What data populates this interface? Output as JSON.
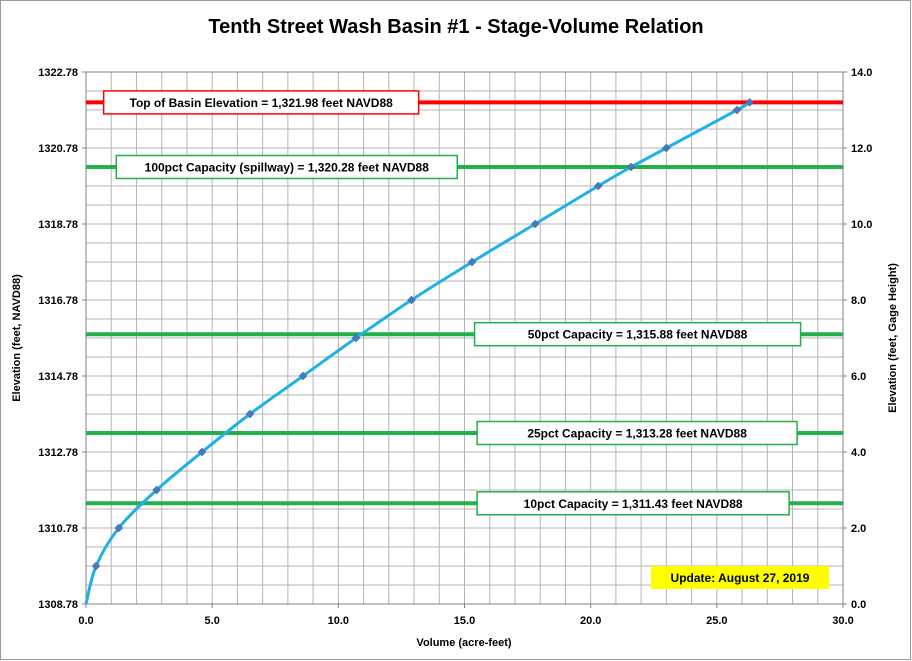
{
  "chart_data": {
    "type": "line",
    "title": "Tenth Street Wash Basin #1 - Stage-Volume Relation",
    "xlabel": "Volume (acre-feet)",
    "ylabel": "Elevation  (feet, NAVD88)",
    "y2label": "Elevation  (feet, Gage  Height)",
    "xlim": [
      0,
      30
    ],
    "ylim": [
      1308.78,
      1322.78
    ],
    "y2lim": [
      0,
      14
    ],
    "xticks": [
      0,
      5,
      10,
      15,
      20,
      25,
      30
    ],
    "xtick_labels": [
      "0.0",
      "5.0",
      "10.0",
      "15.0",
      "20.0",
      "25.0",
      "30.0"
    ],
    "yticks": [
      1308.78,
      1310.78,
      1312.78,
      1314.78,
      1316.78,
      1318.78,
      1320.78,
      1322.78
    ],
    "ytick_labels": [
      "1308.78",
      "1310.78",
      "1312.78",
      "1314.78",
      "1316.78",
      "1318.78",
      "1320.78",
      "1322.78"
    ],
    "y2ticks": [
      0,
      2,
      4,
      6,
      8,
      10,
      12,
      14
    ],
    "y2tick_labels": [
      "0.0",
      "2.0",
      "4.0",
      "6.0",
      "8.0",
      "10.0",
      "12.0",
      "14.0"
    ],
    "grid": true,
    "series": [
      {
        "color": "#1fb0e6",
        "marker_color": "#4a78b8",
        "points": [
          {
            "x": 0.0,
            "y": 1308.78
          },
          {
            "x": 0.4,
            "y": 1309.78
          },
          {
            "x": 1.3,
            "y": 1310.78
          },
          {
            "x": 2.8,
            "y": 1311.78
          },
          {
            "x": 4.6,
            "y": 1312.78
          },
          {
            "x": 6.5,
            "y": 1313.78
          },
          {
            "x": 8.6,
            "y": 1314.78
          },
          {
            "x": 10.7,
            "y": 1315.78
          },
          {
            "x": 12.9,
            "y": 1316.78
          },
          {
            "x": 15.3,
            "y": 1317.78
          },
          {
            "x": 17.8,
            "y": 1318.78
          },
          {
            "x": 20.3,
            "y": 1319.78
          },
          {
            "x": 21.6,
            "y": 1320.28
          },
          {
            "x": 23.0,
            "y": 1320.78
          },
          {
            "x": 25.8,
            "y": 1321.78
          },
          {
            "x": 26.3,
            "y": 1321.98
          }
        ]
      }
    ],
    "reference_lines": [
      {
        "y": 1321.98,
        "color": "#ff0000",
        "label": "Top of Basin Elevation = 1,321.98  feet NAVD88",
        "label_x": 0.7,
        "box_width": 315
      },
      {
        "y": 1320.28,
        "color": "#22b04a",
        "label": "100pct  Capacity (spillway) = 1,320.28  feet NAVD88",
        "label_x": 1.2,
        "box_width": 341
      },
      {
        "y": 1315.88,
        "color": "#22b04a",
        "label": "50pct Capacity = 1,315.88  feet NAVD88",
        "label_x": 15.4,
        "box_width": 326
      },
      {
        "y": 1313.28,
        "color": "#22b04a",
        "label": "25pct Capacity = 1,313.28  feet NAVD88",
        "label_x": 15.5,
        "box_width": 320
      },
      {
        "y": 1311.43,
        "color": "#22b04a",
        "label": "10pct Capacity = 1,311.43  feet NAVD88",
        "label_x": 15.5,
        "box_width": 312
      }
    ],
    "update_note": {
      "text": "Update: August 27, 2019",
      "bg": "#ffff00"
    }
  }
}
